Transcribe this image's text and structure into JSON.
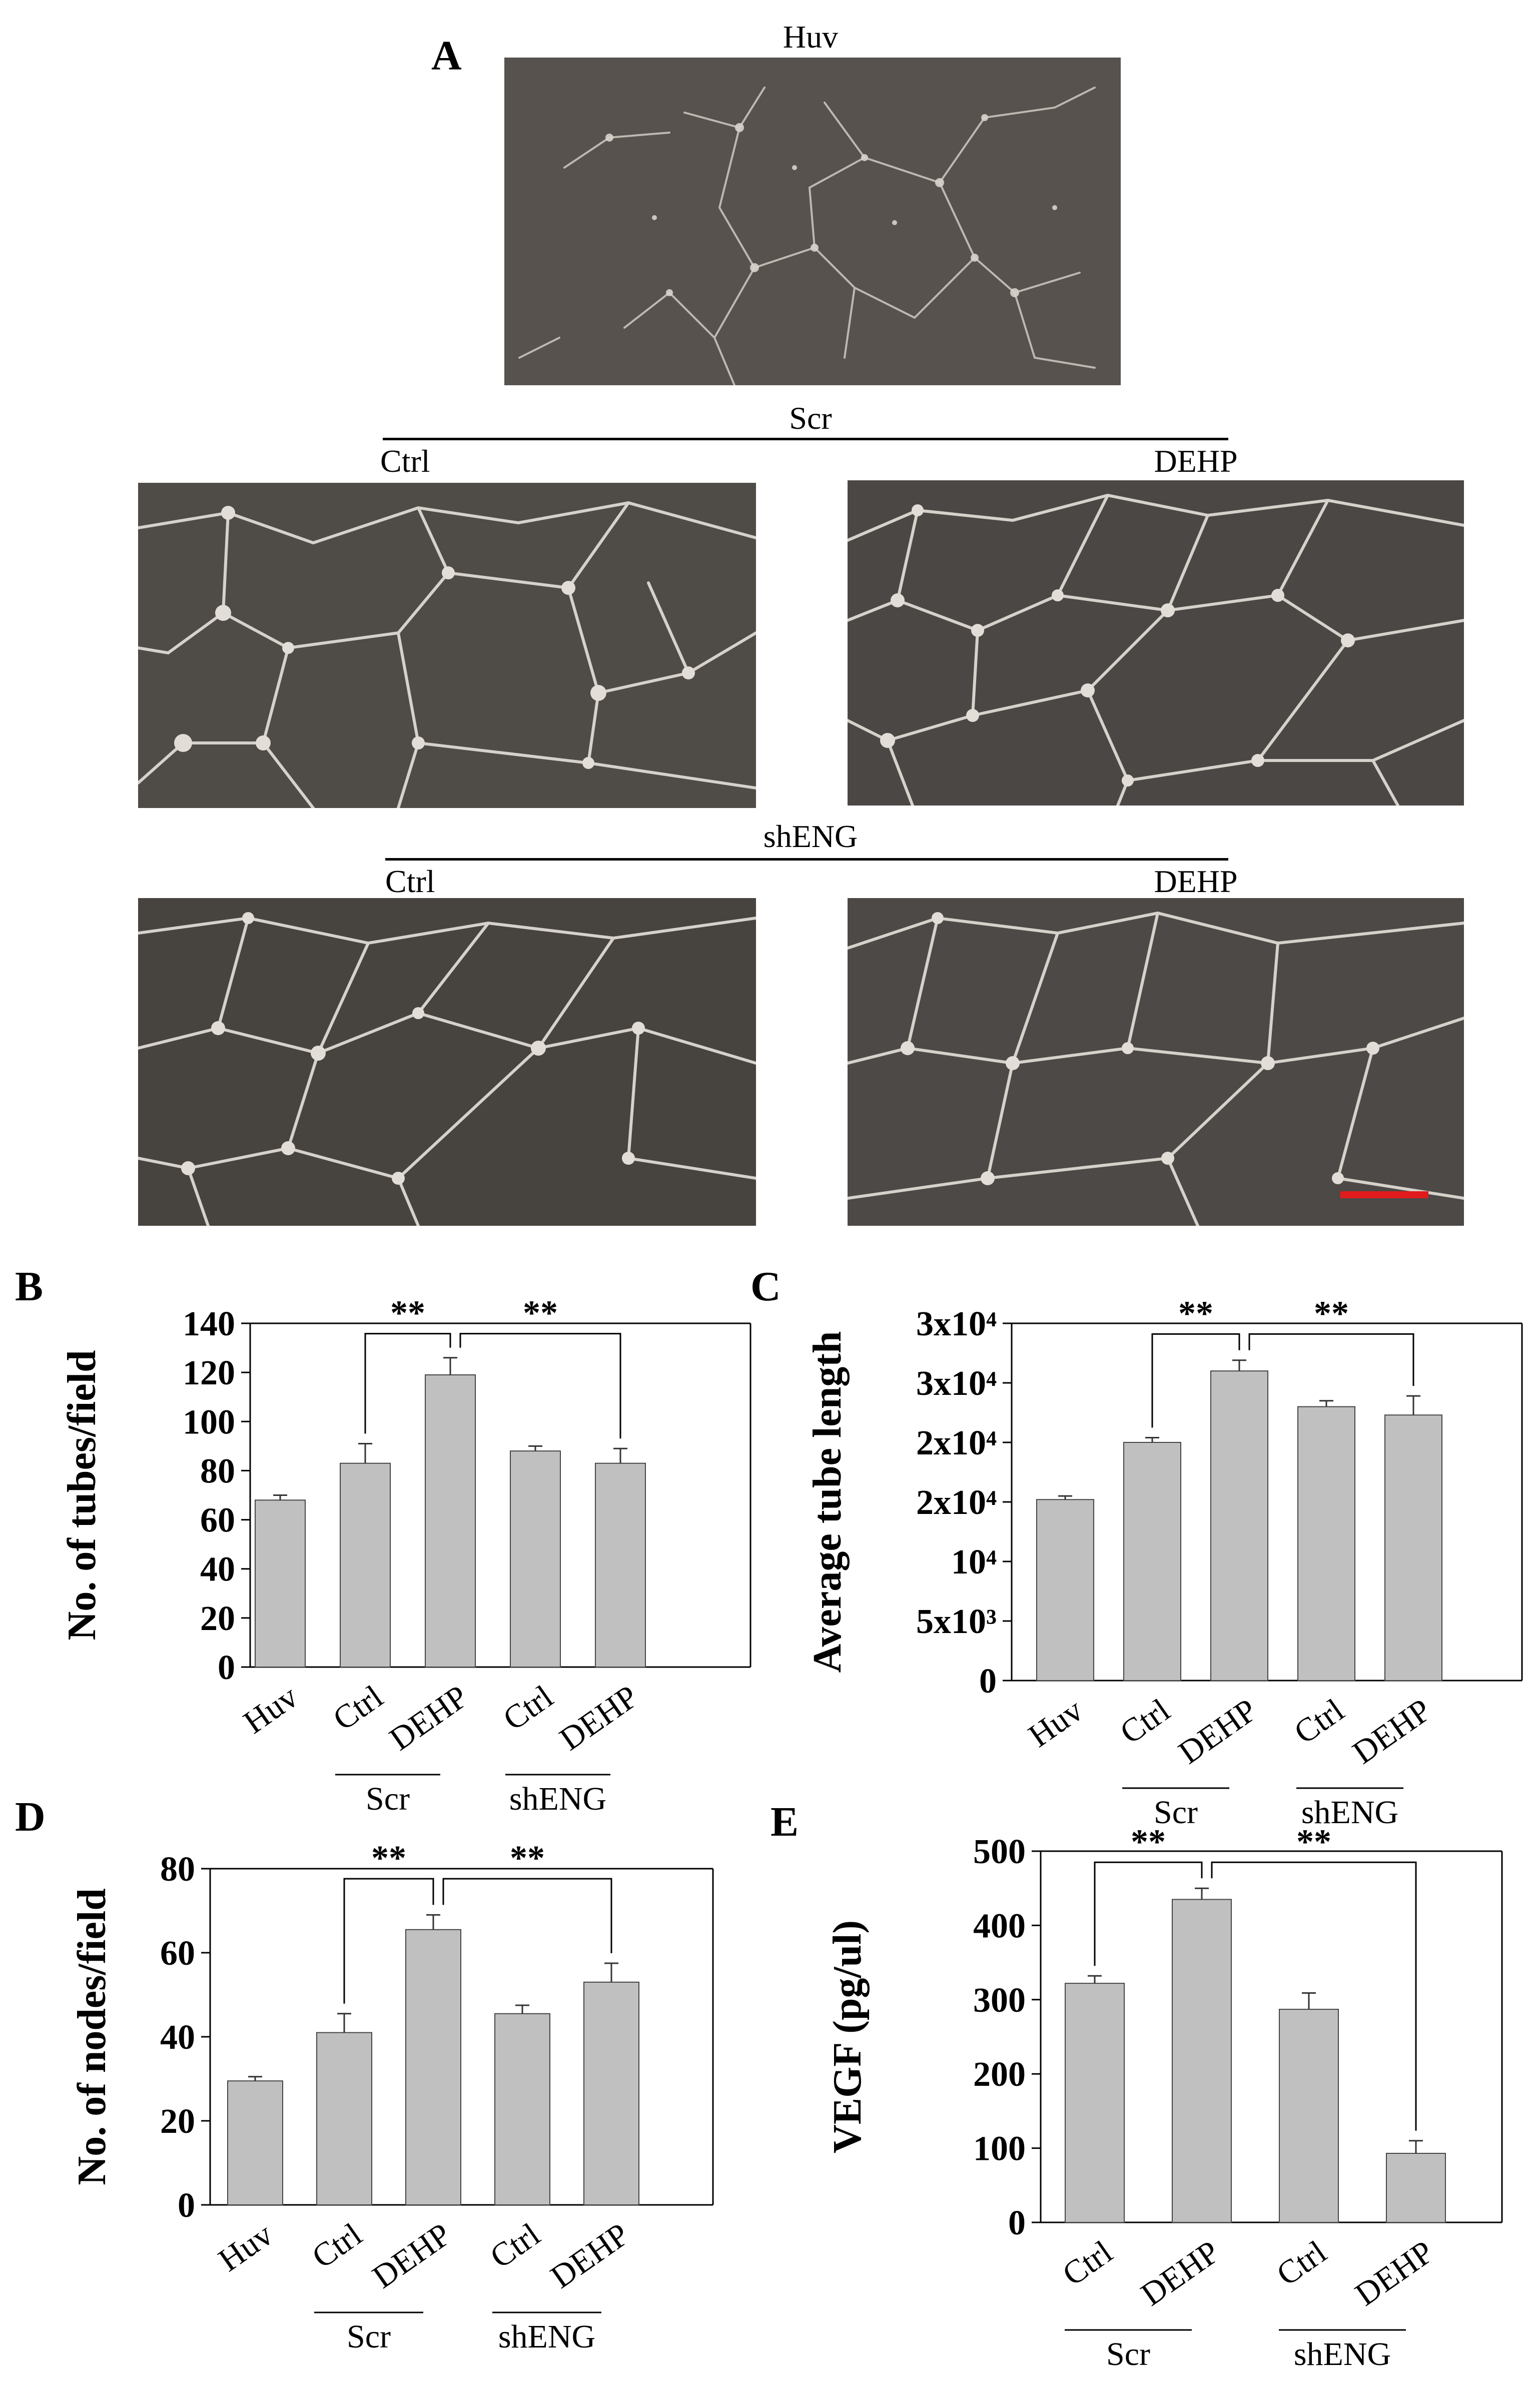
{
  "panel_a": {
    "letter": "A",
    "huv_title": "Huv",
    "scr_label": "Scr",
    "shENG_label": "shENG",
    "ctrl_label": "Ctrl",
    "dehp_label": "DEHP",
    "scale_bar_color": "#e11b1b"
  },
  "chart_data": [
    {
      "id": "B",
      "letter": "B",
      "type": "bar",
      "ylabel": "No. of tubes/field",
      "categories": [
        "Huv",
        "Ctrl",
        "DEHP",
        "Ctrl",
        "DEHP"
      ],
      "values": [
        68,
        83,
        119,
        88,
        83
      ],
      "errors": [
        2,
        8,
        7,
        2,
        6
      ],
      "ylim": [
        0,
        140
      ],
      "yticks": [
        0,
        20,
        40,
        60,
        80,
        100,
        120,
        140
      ],
      "ytick_labels": [
        "0",
        "20",
        "40",
        "60",
        "80",
        "100",
        "120",
        "140"
      ],
      "groups": [
        {
          "label": "Scr",
          "from": 1,
          "to": 2
        },
        {
          "label": "shENG",
          "from": 3,
          "to": 4
        }
      ],
      "significance": [
        {
          "from": 1,
          "to": 2,
          "label": "**"
        },
        {
          "from": 2,
          "to": 4,
          "label": "**"
        }
      ],
      "bar_color": "#c0c0c0"
    },
    {
      "id": "C",
      "letter": "C",
      "type": "bar",
      "ylabel": "Average tube length",
      "categories": [
        "Huv",
        "Ctrl",
        "DEHP",
        "Ctrl",
        "DEHP"
      ],
      "values": [
        15200,
        20000,
        26000,
        23000,
        22300
      ],
      "errors": [
        300,
        400,
        900,
        500,
        1600
      ],
      "ylim": [
        0,
        30000
      ],
      "yticks": [
        0,
        5000,
        10000,
        15000,
        20000,
        25000,
        30000
      ],
      "ytick_labels": [
        "0",
        "5x10³",
        "10⁴",
        "2x10⁴",
        "2x10⁴",
        "3x10⁴",
        "3x10⁴"
      ],
      "groups": [
        {
          "label": "Scr",
          "from": 1,
          "to": 2
        },
        {
          "label": "shENG",
          "from": 3,
          "to": 4
        }
      ],
      "significance": [
        {
          "from": 1,
          "to": 2,
          "label": "**"
        },
        {
          "from": 2,
          "to": 4,
          "label": "**"
        }
      ],
      "bar_color": "#c0c0c0"
    },
    {
      "id": "D",
      "letter": "D",
      "type": "bar",
      "ylabel": "No. of nodes/field",
      "categories": [
        "Huv",
        "Ctrl",
        "DEHP",
        "Ctrl",
        "DEHP"
      ],
      "values": [
        29.5,
        41,
        65.5,
        45.5,
        53
      ],
      "errors": [
        1,
        4.5,
        3.5,
        2,
        4.5
      ],
      "ylim": [
        0,
        80
      ],
      "yticks": [
        0,
        20,
        40,
        60,
        80
      ],
      "ytick_labels": [
        "0",
        "20",
        "40",
        "60",
        "80"
      ],
      "groups": [
        {
          "label": "Scr",
          "from": 1,
          "to": 2
        },
        {
          "label": "shENG",
          "from": 3,
          "to": 4
        }
      ],
      "significance": [
        {
          "from": 1,
          "to": 2,
          "label": "**"
        },
        {
          "from": 2,
          "to": 4,
          "label": "**"
        }
      ],
      "bar_color": "#c0c0c0"
    },
    {
      "id": "E",
      "letter": "E",
      "type": "bar",
      "ylabel": "VEGF (pg/ul)",
      "categories": [
        "Ctrl",
        "DEHP",
        "Ctrl",
        "DEHP"
      ],
      "values": [
        322,
        435,
        287,
        93
      ],
      "errors": [
        10,
        15,
        22,
        17
      ],
      "ylim": [
        0,
        500
      ],
      "yticks": [
        0,
        100,
        200,
        300,
        400,
        500
      ],
      "ytick_labels": [
        "0",
        "100",
        "200",
        "300",
        "400",
        "500"
      ],
      "groups": [
        {
          "label": "Scr",
          "from": 0,
          "to": 1
        },
        {
          "label": "shENG",
          "from": 2,
          "to": 3
        }
      ],
      "significance": [
        {
          "from": 0,
          "to": 1,
          "label": "**"
        },
        {
          "from": 1,
          "to": 3,
          "label": "**"
        }
      ],
      "bar_color": "#c0c0c0"
    }
  ]
}
